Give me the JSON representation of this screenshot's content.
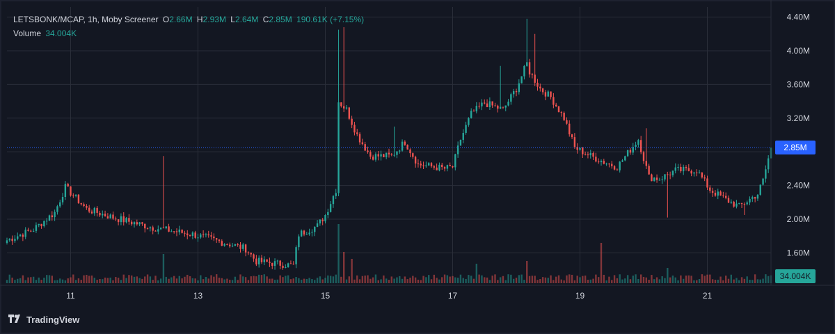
{
  "legend": {
    "symbol": "LETSBONK/MCAP, 1h, Moby Screener",
    "o_label": "O",
    "o": "2.66M",
    "h_label": "H",
    "h": "2.93M",
    "l_label": "L",
    "l": "2.64M",
    "c_label": "C",
    "c": "2.85M",
    "change": "190.61K (+7.15%)",
    "volume_label": "Volume",
    "volume": "34.004K"
  },
  "badges": {
    "price": "2.85M",
    "volume": "34.004K"
  },
  "branding": "TradingView",
  "colors": {
    "background": "#131722",
    "grid": "#2a2e39",
    "up": "#26a69a",
    "down": "#ef5350",
    "price_badge": "#2962ff",
    "volume_badge": "#26a69a",
    "axis_text": "#d1d4dc"
  },
  "chart_data": {
    "type": "candlestick",
    "x_ticks": [
      "11",
      "13",
      "15",
      "17",
      "19",
      "21"
    ],
    "y_ticks": [
      "4.40M",
      "4.00M",
      "3.60M",
      "3.20M",
      "2.80M",
      "2.40M",
      "2.00M",
      "1.60M"
    ],
    "y_tick_values": [
      4.4,
      4.0,
      3.6,
      3.2,
      2.8,
      2.4,
      2.0,
      1.6
    ],
    "y_unit": "M",
    "ylim": [
      1.24,
      4.52
    ],
    "x_start_day": 10,
    "x_day_range": [
      10.0,
      22.0
    ],
    "candles_per_day": 24,
    "last_close": 2.85,
    "last_volume": "34.004K",
    "price_anchors": [
      [
        0,
        1.75
      ],
      [
        10,
        1.88
      ],
      [
        18,
        2.08
      ],
      [
        22,
        2.38
      ],
      [
        30,
        2.12
      ],
      [
        40,
        2.02
      ],
      [
        55,
        1.9
      ],
      [
        70,
        1.82
      ],
      [
        82,
        1.72
      ],
      [
        90,
        1.65
      ],
      [
        94,
        1.5
      ],
      [
        100,
        1.48
      ],
      [
        108,
        1.45
      ],
      [
        110,
        1.82
      ],
      [
        117,
        1.92
      ],
      [
        120,
        2.05
      ],
      [
        124,
        2.35
      ],
      [
        125,
        3.4
      ],
      [
        128,
        3.3
      ],
      [
        132,
        3.0
      ],
      [
        137,
        2.75
      ],
      [
        145,
        2.75
      ],
      [
        150,
        2.92
      ],
      [
        155,
        2.65
      ],
      [
        165,
        2.6
      ],
      [
        168,
        2.62
      ],
      [
        171,
        2.95
      ],
      [
        175,
        3.25
      ],
      [
        180,
        3.38
      ],
      [
        187,
        3.3
      ],
      [
        192,
        3.55
      ],
      [
        196,
        3.85
      ],
      [
        197,
        3.75
      ],
      [
        201,
        3.55
      ],
      [
        205,
        3.45
      ],
      [
        210,
        3.2
      ],
      [
        214,
        2.85
      ],
      [
        220,
        2.75
      ],
      [
        225,
        2.68
      ],
      [
        230,
        2.62
      ],
      [
        238,
        2.95
      ],
      [
        242,
        2.5
      ],
      [
        246,
        2.48
      ],
      [
        252,
        2.58
      ],
      [
        260,
        2.58
      ],
      [
        265,
        2.35
      ],
      [
        270,
        2.25
      ],
      [
        276,
        2.15
      ],
      [
        283,
        2.3
      ],
      [
        285,
        2.46
      ],
      [
        288,
        2.85
      ]
    ],
    "wick_spikes": [
      {
        "index": 59,
        "high": 2.75
      },
      {
        "index": 125,
        "high": 4.25
      },
      {
        "index": 127,
        "high": 4.28
      },
      {
        "index": 146,
        "high": 3.1
      },
      {
        "index": 186,
        "high": 3.82
      },
      {
        "index": 196,
        "high": 4.38
      },
      {
        "index": 199,
        "high": 4.2
      },
      {
        "index": 241,
        "high": 3.08
      },
      {
        "index": 249,
        "low": 2.02
      },
      {
        "index": 278,
        "low": 2.05
      }
    ],
    "volume_spikes": [
      {
        "index": 59,
        "volume": 0.42,
        "up": true
      },
      {
        "index": 125,
        "volume": 0.85,
        "up": true
      },
      {
        "index": 127,
        "volume": 0.45,
        "up": false
      },
      {
        "index": 130,
        "volume": 0.35,
        "up": false
      },
      {
        "index": 177,
        "volume": 0.28,
        "up": true
      },
      {
        "index": 196,
        "volume": 0.32,
        "up": false
      },
      {
        "index": 224,
        "volume": 0.58,
        "up": false
      },
      {
        "index": 249,
        "volume": 0.22,
        "up": true
      }
    ]
  }
}
